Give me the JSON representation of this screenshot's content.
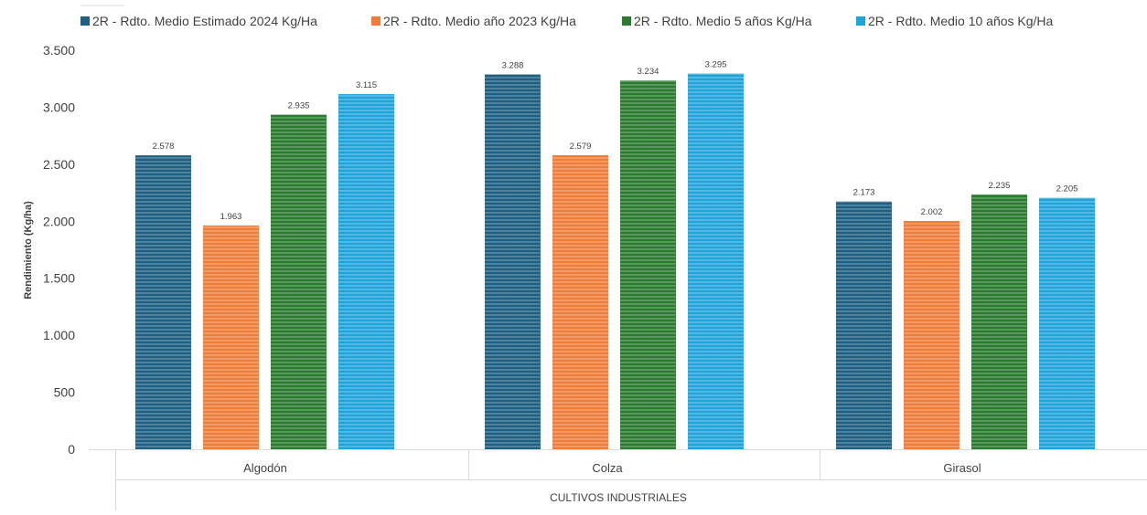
{
  "chart_data": {
    "type": "bar",
    "group_label": "CULTIVOS INDUSTRIALES",
    "categories": [
      "Algodón",
      "Colza",
      "Girasol"
    ],
    "series": [
      {
        "name": "2R - Rdto. Medio Estimado 2024 Kg/Ha",
        "color": "#1f5f82",
        "values": [
          2578,
          3288,
          2173
        ],
        "labels": [
          "2.578",
          "3.288",
          "2.173"
        ]
      },
      {
        "name": "2R - Rdto. Medio año 2023 Kg/Ha",
        "color": "#ee7d3b",
        "values": [
          1963,
          2579,
          2002
        ],
        "labels": [
          "1.963",
          "2.579",
          "2.002"
        ]
      },
      {
        "name": "2R - Rdto. Medio 5 años Kg/Ha",
        "color": "#2a7a30",
        "values": [
          2935,
          3234,
          2235
        ],
        "labels": [
          "2.935",
          "3.234",
          "2.235"
        ]
      },
      {
        "name": "2R - Rdto. Medio 10 años Kg/Ha",
        "color": "#1fa4da",
        "values": [
          3115,
          3295,
          2205
        ],
        "labels": [
          "3.115",
          "3.295",
          "2.205"
        ]
      }
    ],
    "ylabel": "Rendimiento (Kg/ha)",
    "ylim": [
      0,
      3500
    ],
    "yticks": [
      0,
      500,
      1000,
      1500,
      2000,
      2500,
      3000,
      3500
    ],
    "ytick_labels": [
      "0",
      "500",
      "1.000",
      "1.500",
      "2.000",
      "2.500",
      "3.000",
      "3.500"
    ],
    "legend_position": "top",
    "grid": false
  }
}
